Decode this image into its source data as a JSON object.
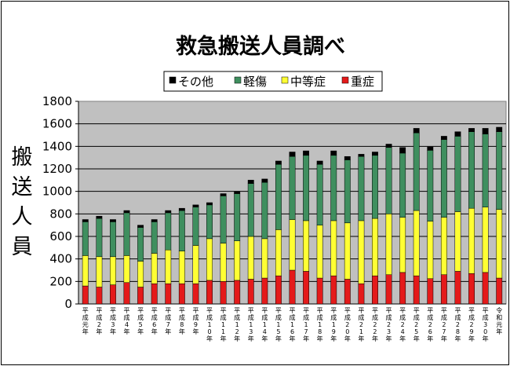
{
  "chart_data": {
    "type": "bar",
    "stacked": true,
    "title": "救急搬送人員調べ",
    "ylabel": "搬送人員",
    "ylim": [
      0,
      1800
    ],
    "yticks": [
      0,
      200,
      400,
      600,
      800,
      1000,
      1200,
      1400,
      1600,
      1800
    ],
    "legend_position": "top",
    "categories": [
      "平成元年",
      "平成2年",
      "平成3年",
      "平成4年",
      "平成5年",
      "平成6年",
      "平成7年",
      "平成8年",
      "平成9年",
      "平成10年",
      "平成11年",
      "平成12年",
      "平成13年",
      "平成14年",
      "平成15年",
      "平成16年",
      "平成17年",
      "平成18年",
      "平成19年",
      "平成20年",
      "平成21年",
      "平成22年",
      "平成23年",
      "平成24年",
      "平成25年",
      "平成26年",
      "平成27年",
      "平成28年",
      "平成29年",
      "平成30年",
      "令和元年"
    ],
    "series": [
      {
        "name": "重症",
        "color": "#e41a1a",
        "values": [
          160,
          150,
          170,
          190,
          150,
          180,
          180,
          180,
          180,
          210,
          200,
          210,
          220,
          230,
          250,
          300,
          290,
          230,
          250,
          220,
          180,
          250,
          260,
          280,
          250,
          225,
          260,
          290,
          270,
          280,
          230
        ]
      },
      {
        "name": "中等症",
        "color": "#ffff33",
        "values": [
          270,
          270,
          250,
          240,
          230,
          270,
          300,
          290,
          340,
          370,
          340,
          350,
          380,
          350,
          410,
          450,
          450,
          470,
          490,
          500,
          560,
          510,
          540,
          490,
          580,
          510,
          510,
          530,
          580,
          580,
          610
        ]
      },
      {
        "name": "軽傷",
        "color": "#3f8f5f",
        "values": [
          300,
          340,
          310,
          380,
          300,
          280,
          330,
          360,
          340,
          300,
          420,
          420,
          470,
          500,
          580,
          560,
          580,
          540,
          580,
          560,
          570,
          560,
          590,
          570,
          690,
          630,
          690,
          670,
          680,
          650,
          690
        ]
      },
      {
        "name": "その他",
        "color": "#000000",
        "values": [
          20,
          20,
          20,
          20,
          20,
          20,
          20,
          20,
          20,
          20,
          20,
          20,
          30,
          30,
          30,
          40,
          40,
          30,
          40,
          30,
          20,
          30,
          30,
          50,
          40,
          30,
          30,
          40,
          30,
          50,
          40
        ]
      }
    ],
    "legend_order": [
      "その他",
      "軽傷",
      "中等症",
      "重症"
    ]
  }
}
